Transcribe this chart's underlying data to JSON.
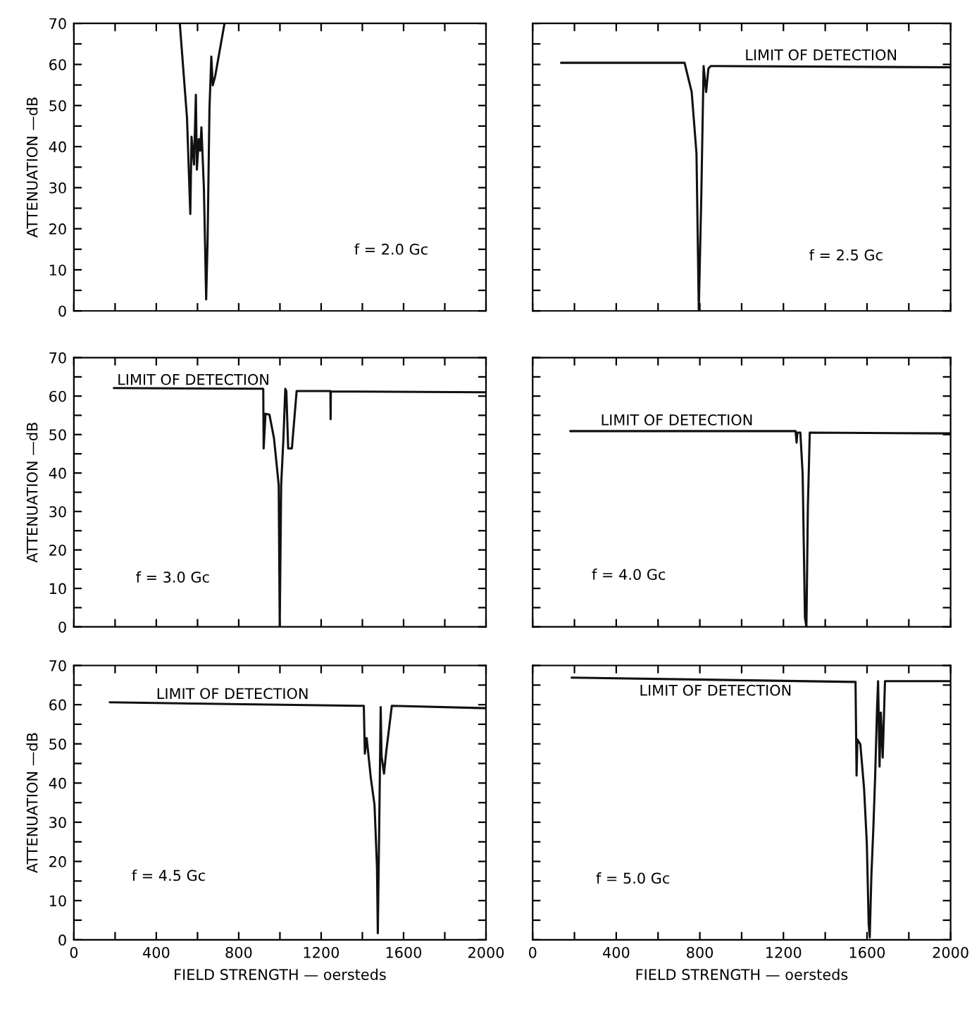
{
  "chart_data": [
    {
      "type": "line",
      "ylabel": "ATTENUATION —dB",
      "xlim": [
        0,
        2000
      ],
      "ylim": [
        0,
        70
      ],
      "tick_labels": "y",
      "xticks": [
        0,
        {
          "value": 200,
          "label": null
        },
        400,
        {
          "value": 600,
          "label": null
        },
        800,
        {
          "value": 1000,
          "label": null
        },
        1200,
        {
          "value": 1400,
          "label": null
        },
        1600,
        {
          "value": 1800,
          "label": null
        },
        2000
      ],
      "yticks": [
        0,
        {
          "value": 5,
          "label": null
        },
        10,
        {
          "value": 15,
          "label": null
        },
        20,
        {
          "value": 25,
          "label": null
        },
        30,
        {
          "value": 35,
          "label": null
        },
        40,
        {
          "value": 45,
          "label": null
        },
        50,
        {
          "value": 55,
          "label": null
        },
        60,
        {
          "value": 65,
          "label": null
        },
        70
      ],
      "annotations": [
        "f = 2.0 Gc"
      ],
      "series": [
        {
          "color": "#111111",
          "x": [
            514,
            549,
            565,
            571,
            583,
            592,
            597,
            606,
            613,
            619,
            631,
            642,
            649,
            658,
            667,
            674,
            686,
            731
          ],
          "values": [
            70,
            47,
            23.6,
            42.4,
            35.6,
            52.6,
            34.4,
            41.8,
            39,
            44.7,
            29.9,
            2.8,
            17.4,
            49.2,
            61.9,
            54.9,
            57.2,
            70
          ]
        }
      ]
    },
    {
      "type": "line",
      "xlim": [
        0,
        2000
      ],
      "ylim": [
        0,
        70
      ],
      "tick_labels": false,
      "xticks": [
        0,
        {
          "value": 200,
          "label": null
        },
        400,
        {
          "value": 600,
          "label": null
        },
        800,
        {
          "value": 1000,
          "label": null
        },
        1200,
        {
          "value": 1400,
          "label": null
        },
        1600,
        {
          "value": 1800,
          "label": null
        },
        2000
      ],
      "yticks": [
        0,
        {
          "value": 5,
          "label": null
        },
        10,
        {
          "value": 15,
          "label": null
        },
        20,
        {
          "value": 25,
          "label": null
        },
        30,
        {
          "value": 35,
          "label": null
        },
        40,
        {
          "value": 45,
          "label": null
        },
        50,
        {
          "value": 55,
          "label": null
        },
        60,
        {
          "value": 65,
          "label": null
        },
        70
      ],
      "annotations": [
        "LIMIT OF DETECTION",
        "f = 2.5 Gc"
      ],
      "series": [
        {
          "color": "#111111",
          "x": [
            136,
            727,
            761,
            784,
            795,
            807,
            818,
            830,
            841,
            852,
            2000
          ],
          "values": [
            60.4,
            60.4,
            53.3,
            38.3,
            0.2,
            27.9,
            59.6,
            53.3,
            59,
            59.6,
            59.3
          ]
        }
      ]
    },
    {
      "type": "line",
      "ylabel": "ATTENUATION —dB",
      "xlim": [
        0,
        2000
      ],
      "ylim": [
        0,
        70
      ],
      "tick_labels": "y",
      "xticks": [
        0,
        {
          "value": 200,
          "label": null
        },
        400,
        {
          "value": 600,
          "label": null
        },
        800,
        {
          "value": 1000,
          "label": null
        },
        1200,
        {
          "value": 1400,
          "label": null
        },
        1600,
        {
          "value": 1800,
          "label": null
        },
        2000
      ],
      "yticks": [
        0,
        {
          "value": 5,
          "label": null
        },
        10,
        {
          "value": 15,
          "label": null
        },
        20,
        {
          "value": 25,
          "label": null
        },
        30,
        {
          "value": 35,
          "label": null
        },
        40,
        {
          "value": 45,
          "label": null
        },
        50,
        {
          "value": 55,
          "label": null
        },
        60,
        {
          "value": 65,
          "label": null
        },
        70
      ],
      "annotations": [
        "LIMIT OF DETECTION",
        "f = 3.0 Gc"
      ],
      "series": [
        {
          "color": "#111111",
          "x": [
            194,
            919,
            921,
            930,
            949,
            971,
            994,
            999,
            1006,
            1017,
            1026,
            1031,
            1040,
            1058,
            1081,
            1245,
            1246,
            1247,
            2000
          ],
          "values": [
            62.1,
            61.9,
            46.4,
            55.4,
            55.2,
            49.1,
            36.9,
            0,
            36.9,
            49.1,
            61.9,
            61.3,
            46.4,
            46.4,
            61.3,
            61.3,
            54,
            61.2,
            61
          ]
        }
      ]
    },
    {
      "type": "line",
      "xlim": [
        0,
        2000
      ],
      "ylim": [
        0,
        70
      ],
      "tick_labels": false,
      "xticks": [
        0,
        {
          "value": 200,
          "label": null
        },
        400,
        {
          "value": 600,
          "label": null
        },
        800,
        {
          "value": 1000,
          "label": null
        },
        1200,
        {
          "value": 1400,
          "label": null
        },
        1600,
        {
          "value": 1800,
          "label": null
        },
        2000
      ],
      "yticks": [
        0,
        {
          "value": 5,
          "label": null
        },
        10,
        {
          "value": 15,
          "label": null
        },
        20,
        {
          "value": 25,
          "label": null
        },
        30,
        {
          "value": 35,
          "label": null
        },
        40,
        {
          "value": 45,
          "label": null
        },
        50,
        {
          "value": 55,
          "label": null
        },
        60,
        {
          "value": 65,
          "label": null
        },
        70
      ],
      "annotations": [
        "LIMIT OF DETECTION",
        "f = 4.0 Gc"
      ],
      "series": [
        {
          "color": "#111111",
          "x": [
            180,
            1258,
            1263,
            1267,
            1281,
            1292,
            1303,
            1310,
            1317,
            1326,
            2000
          ],
          "values": [
            50.9,
            50.9,
            47.9,
            50.5,
            50.5,
            39.7,
            2.4,
            0,
            31.3,
            50.5,
            50.3
          ]
        }
      ]
    },
    {
      "type": "line",
      "ylabel": "ATTENUATION —dB",
      "xlabel": "FIELD STRENGTH — oersteds",
      "xlim": [
        0,
        2000
      ],
      "ylim": [
        0,
        70
      ],
      "xticks": [
        0,
        {
          "value": 200,
          "label": null
        },
        400,
        {
          "value": 600,
          "label": null
        },
        800,
        {
          "value": 1000,
          "label": null
        },
        1200,
        {
          "value": 1400,
          "label": null
        },
        1600,
        {
          "value": 1800,
          "label": null
        },
        2000
      ],
      "yticks": [
        0,
        {
          "value": 5,
          "label": null
        },
        10,
        {
          "value": 15,
          "label": null
        },
        20,
        {
          "value": 25,
          "label": null
        },
        30,
        {
          "value": 35,
          "label": null
        },
        40,
        {
          "value": 45,
          "label": null
        },
        50,
        {
          "value": 55,
          "label": null
        },
        60,
        {
          "value": 65,
          "label": null
        },
        70
      ],
      "annotations": [
        "LIMIT OF DETECTION",
        "f = 4.5 Gc"
      ],
      "series": [
        {
          "color": "#111111",
          "x": [
            174,
            1407,
            1412,
            1421,
            1441,
            1459,
            1471,
            1475,
            1482,
            1489,
            1493,
            1505,
            1516,
            1543,
            2000
          ],
          "values": [
            60.6,
            59.7,
            47.5,
            51.5,
            41.3,
            34.4,
            18.5,
            1.7,
            29.9,
            59.4,
            46.9,
            42.4,
            48.1,
            59.7,
            59.1
          ]
        }
      ]
    },
    {
      "type": "line",
      "xlabel": "FIELD STRENGTH — oersteds",
      "xlim": [
        0,
        2000
      ],
      "ylim": [
        0,
        70
      ],
      "tick_labels": "x",
      "xticks": [
        0,
        {
          "value": 200,
          "label": null
        },
        400,
        {
          "value": 600,
          "label": null
        },
        800,
        {
          "value": 1000,
          "label": null
        },
        1200,
        {
          "value": 1400,
          "label": null
        },
        1600,
        {
          "value": 1800,
          "label": null
        },
        2000
      ],
      "yticks": [
        0,
        {
          "value": 5,
          "label": null
        },
        10,
        {
          "value": 15,
          "label": null
        },
        20,
        {
          "value": 25,
          "label": null
        },
        30,
        {
          "value": 35,
          "label": null
        },
        40,
        {
          "value": 45,
          "label": null
        },
        50,
        {
          "value": 55,
          "label": null
        },
        60,
        {
          "value": 65,
          "label": null
        },
        70
      ],
      "annotations": [
        "LIMIT OF DETECTION",
        "f = 5.0 Gc"
      ],
      "series": [
        {
          "color": "#111111",
          "x": [
            186,
            1545,
            1550,
            1554,
            1568,
            1586,
            1599,
            1608,
            1613,
            1621,
            1630,
            1639,
            1648,
            1653,
            1660,
            1666,
            1675,
            1686,
            2000
          ],
          "values": [
            66.9,
            65.8,
            41.9,
            51.1,
            49.9,
            38.5,
            24.7,
            4,
            0.6,
            16.6,
            28.1,
            41.9,
            59.1,
            66,
            44.2,
            58,
            46.5,
            66,
            66
          ]
        }
      ]
    }
  ]
}
